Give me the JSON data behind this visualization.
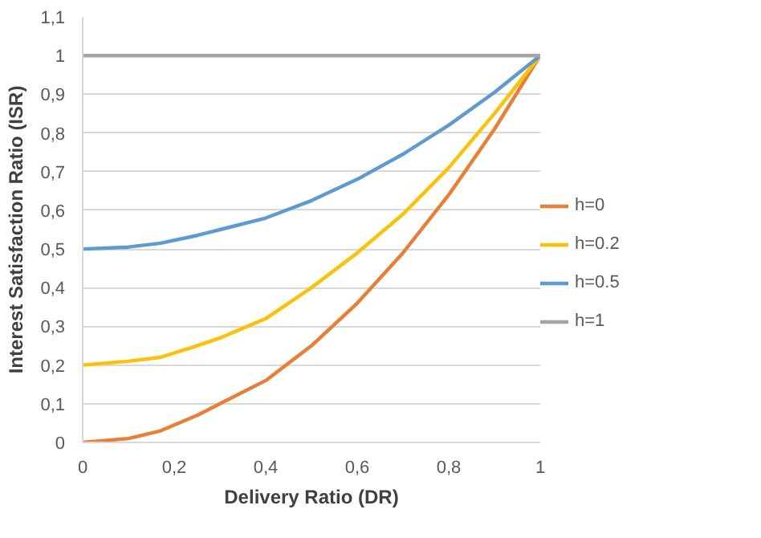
{
  "chart_data": {
    "type": "line",
    "xlabel": "Delivery Ratio (DR)",
    "ylabel": "Interest Satisfaction Ratio (ISR)",
    "x": [
      0,
      0.1,
      0.17,
      0.25,
      0.3,
      0.4,
      0.5,
      0.6,
      0.7,
      0.8,
      0.9,
      1
    ],
    "series": [
      {
        "name": "h=0",
        "color": "#ed7d31",
        "values": [
          0,
          0.01,
          0.03,
          0.07,
          0.1,
          0.16,
          0.25,
          0.36,
          0.49,
          0.64,
          0.81,
          1
        ]
      },
      {
        "name": "h=0.2",
        "color": "#ffc000",
        "values": [
          0.2,
          0.21,
          0.22,
          0.25,
          0.27,
          0.32,
          0.4,
          0.49,
          0.59,
          0.71,
          0.85,
          1
        ]
      },
      {
        "name": "h=0.5",
        "color": "#5b9bd5",
        "values": [
          0.5,
          0.505,
          0.515,
          0.535,
          0.55,
          0.58,
          0.625,
          0.68,
          0.745,
          0.82,
          0.905,
          1
        ]
      },
      {
        "name": "h=1",
        "color": "#a5a5a5",
        "values": [
          1,
          1,
          1,
          1,
          1,
          1,
          1,
          1,
          1,
          1,
          1,
          1
        ]
      }
    ],
    "xlim": [
      0,
      1
    ],
    "ylim": [
      0,
      1.1
    ],
    "xticks": [
      0,
      {
        "value": 0.2,
        "label": "0,2"
      },
      {
        "value": 0.4,
        "label": "0,4"
      },
      {
        "value": 0.6,
        "label": "0,6"
      },
      {
        "value": 0.8,
        "label": "0,8"
      },
      1
    ],
    "yticks": [
      0,
      {
        "value": 0.1,
        "label": "0,1"
      },
      {
        "value": 0.2,
        "label": "0,2"
      },
      {
        "value": 0.3,
        "label": "0,3"
      },
      {
        "value": 0.4,
        "label": "0,4"
      },
      {
        "value": 0.5,
        "label": "0,5"
      },
      {
        "value": 0.6,
        "label": "0,6"
      },
      {
        "value": 0.7,
        "label": "0,7"
      },
      {
        "value": 0.8,
        "label": "0,8"
      },
      {
        "value": 0.9,
        "label": "0,9"
      },
      1,
      {
        "value": 1.1,
        "label": "1,1"
      }
    ],
    "grid": "y",
    "legend": "right",
    "line_style": "solid",
    "marker": "none"
  }
}
